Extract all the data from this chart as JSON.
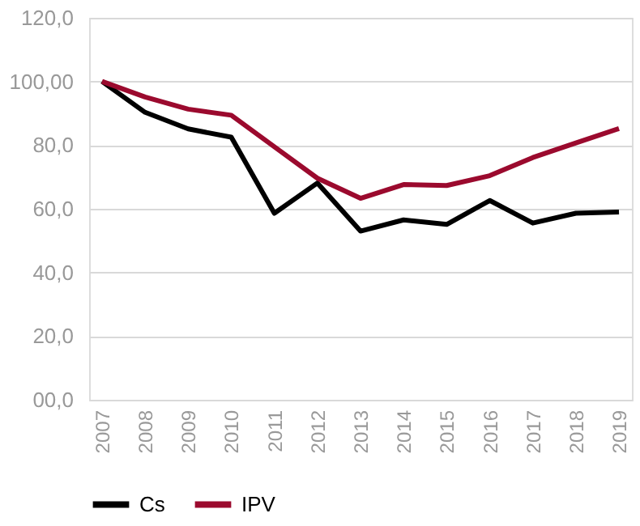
{
  "chart_data": {
    "type": "line",
    "categories": [
      "2007",
      "2008",
      "2009",
      "2010",
      "2011",
      "2012",
      "2013",
      "2014",
      "2015",
      "2016",
      "2017",
      "2018",
      "2019"
    ],
    "series": [
      {
        "name": "Cs",
        "color": "#000000",
        "values": [
          100,
          90.3,
          85.1,
          82.5,
          58.6,
          68.1,
          53,
          56.5,
          55.1,
          62.6,
          55.5,
          58.6,
          59
        ]
      },
      {
        "name": "IPV",
        "color": "#9b0a2e",
        "values": [
          100,
          95.1,
          91.3,
          89.4,
          79.5,
          69.6,
          63.3,
          67.6,
          67.3,
          70.4,
          76.1,
          80.7,
          85.2
        ]
      }
    ],
    "ylim": [
      0,
      120
    ],
    "yticks": [
      {
        "value": 0,
        "label": "00,0"
      },
      {
        "value": 20,
        "label": "20,0"
      },
      {
        "value": 40,
        "label": "40,0"
      },
      {
        "value": 60,
        "label": "60,0"
      },
      {
        "value": 80,
        "label": "80,0"
      },
      {
        "value": 100,
        "label": "100,00"
      },
      {
        "value": 120,
        "label": "120,0"
      }
    ],
    "grid": "y",
    "legend": "bottom",
    "marker": "none",
    "line_style": "solid"
  }
}
